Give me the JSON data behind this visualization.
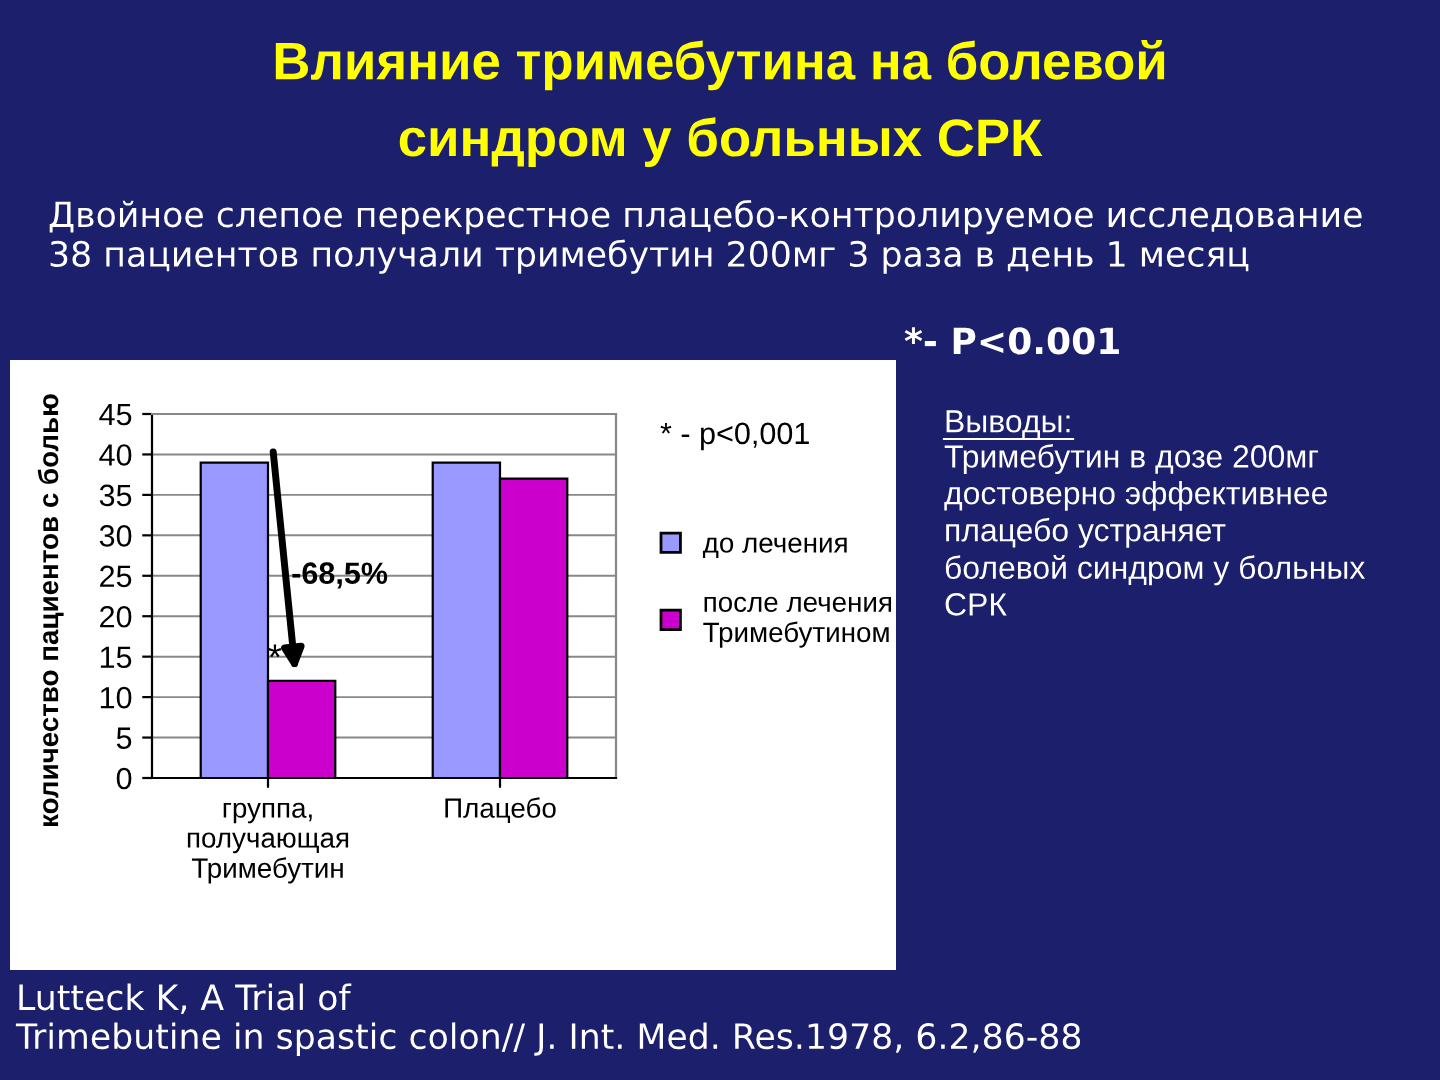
{
  "chart_data": {
    "type": "bar",
    "title": "Влияние тримебутина на болевой\nсиндром у больных СРК",
    "subtitle": "Двойное слепое перекрестное плацебо-контролируемое исследование\n38 пациентов получали тримебутин 200мг 3 раза в день 1 месяц",
    "ylabel": "количество пациентов с болью",
    "categories": [
      "группа,\nполучающая\nТримебутин",
      "Плацебо"
    ],
    "series": [
      {
        "name": "до лечения",
        "color": "#9999ff",
        "values": [
          39,
          39
        ]
      },
      {
        "name": "после лечения\nТримебутином",
        "color": "#cc00cc",
        "values": [
          12,
          37
        ]
      }
    ],
    "ylim": [
      0,
      45
    ],
    "yticks": [
      0,
      5,
      10,
      15,
      20,
      25,
      30,
      35,
      40,
      45
    ],
    "grid": "y",
    "legend": "right",
    "annotations": [
      "*- P<0.001",
      "* - p<0,001",
      {
        "text": "-68,5%",
        "x": "группа,\nполучающая\nТримебутин",
        "y": 25
      },
      {
        "text": "*",
        "x": "группа,\nполучающая\nТримебутин",
        "y": 12
      },
      "Выводы:",
      "Тримебутин в дозе 200мг\nдостоверно эффективнее\nплацебо устраняет\nболевой синдром у больных\nСРК",
      "Lutteck K, A Trial of\nTrimebutine in spastic colon// J. Int. Med. Res.1978, 6.2,86-88"
    ]
  }
}
